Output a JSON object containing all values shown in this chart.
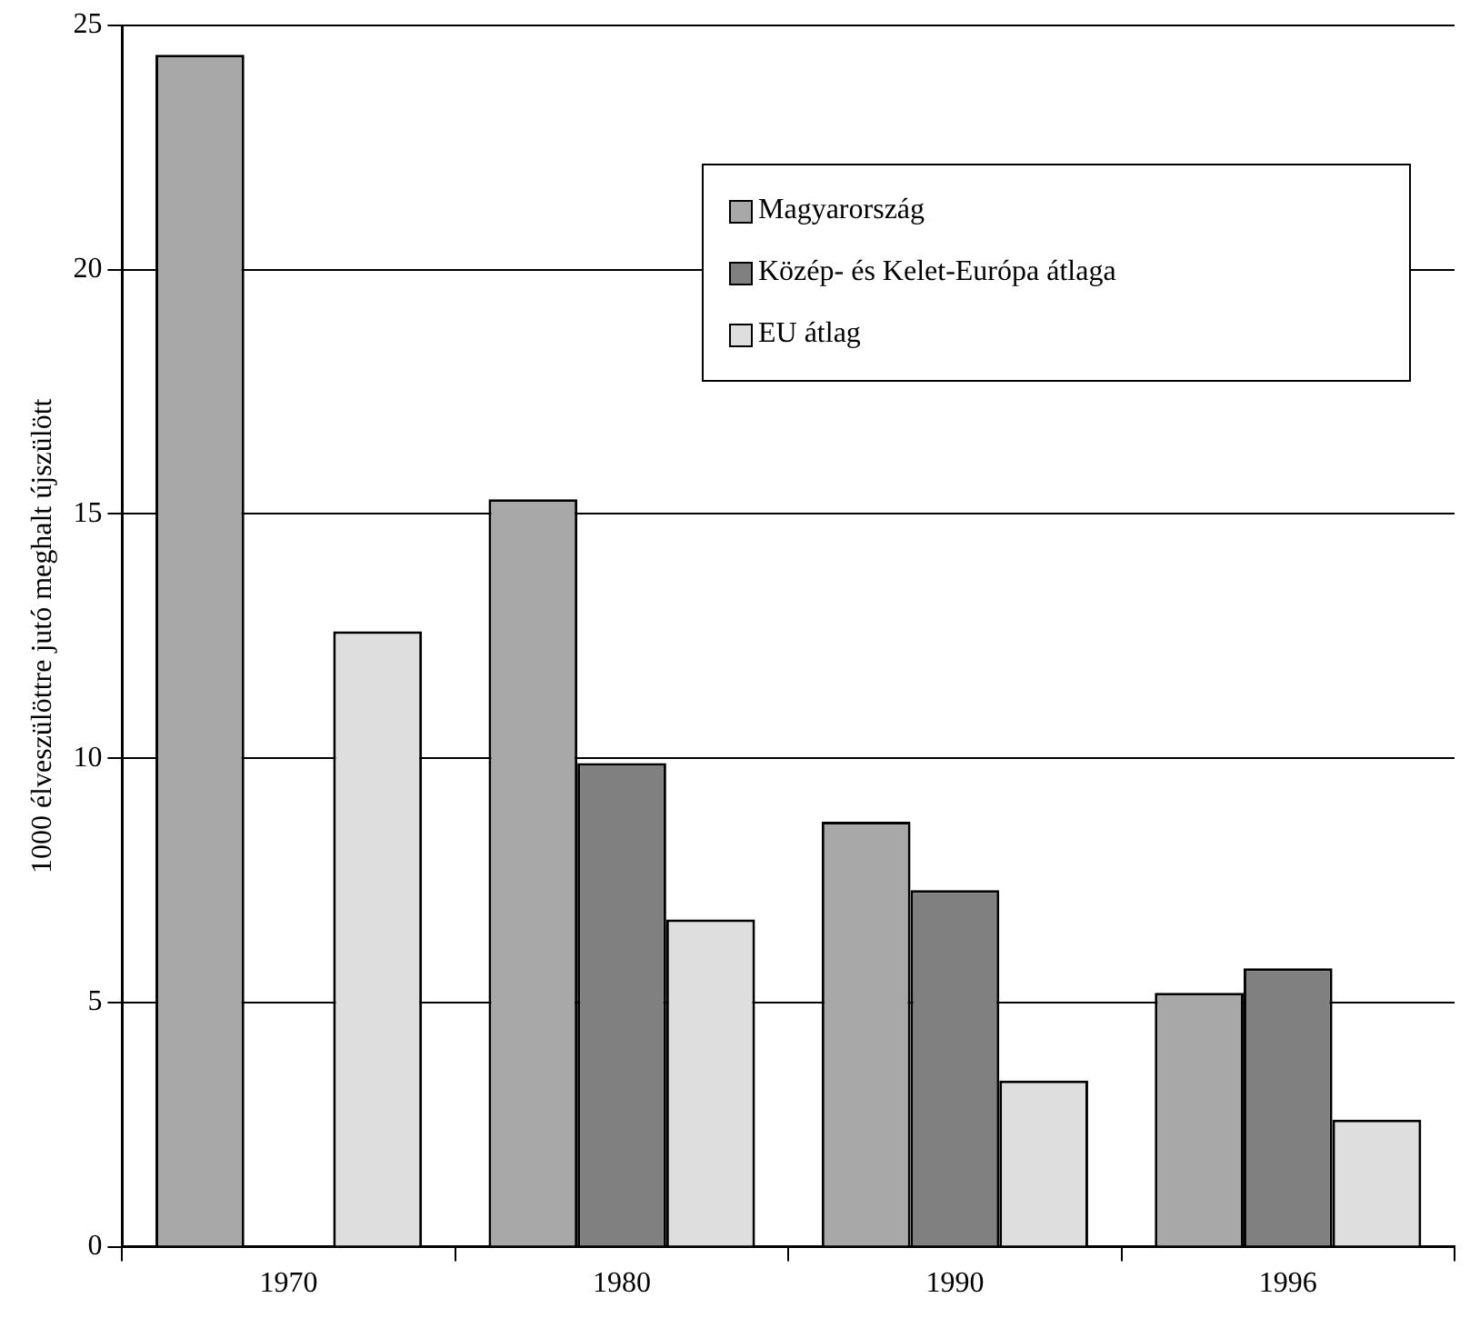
{
  "chart_data": {
    "type": "bar",
    "ylabel": "1000 élveszülöttre jutó meghalt újszülött",
    "categories": [
      "1970",
      "1980",
      "1990",
      "1996"
    ],
    "series": [
      {
        "name": "Magyarország",
        "color": "#a8a8a8",
        "values": [
          24.4,
          15.3,
          8.7,
          5.2
        ]
      },
      {
        "name": "Közép- és Kelet-Európa átlaga",
        "color": "#808080",
        "values": [
          null,
          9.9,
          7.3,
          5.7
        ]
      },
      {
        "name": "EU átlag",
        "color": "#dedede",
        "values": [
          12.6,
          6.7,
          3.4,
          2.6
        ]
      }
    ],
    "ylim": [
      0,
      25
    ],
    "yticks": [
      0,
      5,
      10,
      15,
      20,
      25
    ],
    "grid": "y",
    "legend": "top right"
  }
}
